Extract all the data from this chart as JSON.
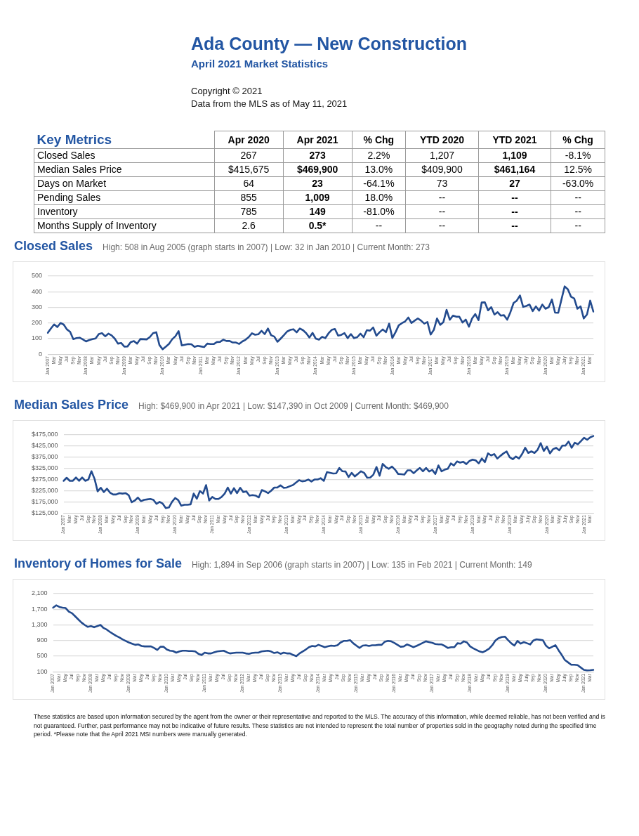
{
  "chart_data": [
    {
      "type": "other",
      "title": "Ada County — New Construction",
      "subtitle": "April 2021 Market Statistics",
      "ylabel": "Key Metrics",
      "annotations": [
        "Copyright © 2021",
        "Data from the MLS as of May 11, 2021"
      ],
      "categories": [
        "Closed Sales",
        "Median Sales Price",
        "Days on Market",
        "Pending Sales",
        "Inventory",
        "Months Supply of Inventory"
      ],
      "series": [
        {
          "name": "Apr 2020",
          "values": [
            267,
            415675,
            64,
            855,
            785,
            2.6
          ],
          "value_labels": [
            "267",
            "$415,675",
            "64",
            "855",
            "785",
            "2.6"
          ]
        },
        {
          "name": "Apr 2021",
          "values": [
            273,
            469900,
            23,
            1009,
            149,
            0.5
          ],
          "value_labels": [
            "273",
            "$469,900",
            "23",
            "1,009",
            "149",
            "0.5*"
          ]
        },
        {
          "name": "% Chg",
          "values": [
            2.2,
            13.0,
            -64.1,
            18.0,
            -81.0,
            null
          ],
          "value_labels": [
            "2.2%",
            "13.0%",
            "-64.1%",
            "18.0%",
            "-81.0%",
            "--"
          ]
        },
        {
          "name": "YTD 2020",
          "values": [
            1207,
            409900,
            73,
            null,
            null,
            null
          ],
          "value_labels": [
            "1,207",
            "$409,900",
            "73",
            "--",
            "--",
            "--"
          ]
        },
        {
          "name": "YTD 2021",
          "values": [
            1109,
            461164,
            27,
            null,
            null,
            null
          ],
          "value_labels": [
            "1,109",
            "$461,164",
            "27",
            "--",
            "--",
            "--"
          ]
        },
        {
          "name": "% Chg",
          "values": [
            -8.1,
            12.5,
            -63.0,
            null,
            null,
            null
          ],
          "value_labels": [
            "-8.1%",
            "12.5%",
            "-63.0%",
            "--",
            "--",
            "--"
          ]
        }
      ]
    },
    {
      "type": "line",
      "title": "Closed Sales",
      "subtitle": "High: 508 in Aug 2005 (graph starts in 2007)  |  Low: 32 in Jan 2010  |  Current Month: 273",
      "color": "#234b8e",
      "grid": "y",
      "ylim": [
        0,
        500
      ],
      "yticks": [
        0,
        100,
        200,
        300,
        400,
        500
      ],
      "categories": [
        "Jan 2007",
        null,
        "Mar",
        null,
        "May",
        null,
        "Jul",
        null,
        "Sep",
        null,
        "Nov",
        null,
        "Jan 2008",
        null,
        "Mar",
        null,
        "May",
        null,
        "Jul",
        null,
        "Sep",
        null,
        "Nov",
        null,
        "Jan 2009",
        null,
        "Mar",
        null,
        "May",
        null,
        "Jul",
        null,
        "Sep",
        null,
        "Nov",
        null,
        "Jan 2010",
        null,
        "Mar",
        null,
        "May",
        null,
        "Jul",
        null,
        "Sep",
        null,
        "Nov",
        null,
        "Jan 2011",
        null,
        "Mar",
        null,
        "May",
        null,
        "Jul",
        null,
        "Sep",
        null,
        "Nov",
        null,
        "Jan 2012",
        null,
        "Mar",
        null,
        "May",
        null,
        "Jul",
        null,
        "Sep",
        null,
        "Nov",
        null,
        "Jan 2013",
        null,
        "Mar",
        null,
        "May",
        null,
        "Jul",
        null,
        "Sep",
        null,
        "Nov",
        null,
        "Jan 2014",
        null,
        "Mar",
        null,
        "May",
        null,
        "Jul",
        null,
        "Sep",
        null,
        "Nov",
        null,
        "Jan 2015",
        null,
        "Mar",
        null,
        "May",
        null,
        "Jul",
        null,
        "Sep",
        null,
        "Nov",
        null,
        "Jan 2016",
        null,
        "Mar",
        null,
        "May",
        null,
        "Jul",
        null,
        "Sep",
        null,
        "Nov",
        null,
        "Jan 2017",
        null,
        "Mar",
        null,
        "May",
        null,
        "Jul",
        null,
        "Sep",
        null,
        "Nov",
        null,
        "Jan 2018",
        null,
        "Mar",
        null,
        "May",
        null,
        "Jul",
        null,
        "Sep",
        null,
        "Nov",
        null,
        "Jan 2019",
        null,
        "Mar",
        null,
        "May",
        null,
        "July",
        null,
        "Sep",
        null,
        "Nov",
        null,
        "Jan 2020",
        null,
        "Mar",
        null,
        "May",
        null,
        "July",
        null,
        "Sep",
        null,
        "Nov",
        null,
        "Jan 2021",
        null,
        "Mar",
        null
      ],
      "values": [
        137,
        165,
        191,
        174,
        200,
        190,
        159,
        144,
        97,
        103,
        106,
        95,
        82,
        91,
        97,
        101,
        129,
        135,
        115,
        132,
        121,
        100,
        68,
        72,
        49,
        50,
        78,
        84,
        68,
        97,
        96,
        95,
        110,
        135,
        141,
        59,
        32,
        48,
        66,
        96,
        115,
        148,
        56,
        61,
        65,
        64,
        47,
        54,
        50,
        46,
        68,
        65,
        65,
        78,
        79,
        93,
        85,
        85,
        75,
        75,
        66,
        82,
        93,
        110,
        134,
        125,
        128,
        150,
        129,
        165,
        122,
        113,
        80,
        100,
        122,
        145,
        156,
        160,
        140,
        165,
        154,
        135,
        107,
        137,
        100,
        93,
        112,
        103,
        134,
        156,
        162,
        119,
        124,
        135,
        103,
        129,
        103,
        109,
        132,
        109,
        154,
        151,
        171,
        119,
        141,
        159,
        141,
        196,
        104,
        141,
        185,
        199,
        210,
        235,
        200,
        215,
        229,
        215,
        196,
        206,
        126,
        156,
        229,
        188,
        206,
        284,
        221,
        247,
        240,
        240,
        203,
        222,
        176,
        229,
        257,
        218,
        331,
        332,
        281,
        301,
        254,
        269,
        247,
        250,
        221,
        269,
        328,
        343,
        376,
        303,
        309,
        318,
        276,
        306,
        279,
        318,
        291,
        301,
        350,
        266,
        265,
        350,
        434,
        416,
        368,
        357,
        291,
        306,
        229,
        254,
        343,
        273
      ]
    },
    {
      "type": "line",
      "title": "Median Sales Price",
      "subtitle": "High: $469,900 in Apr 2021  |  Low: $147,390 in Oct 2009  |  Current Month: $469,900",
      "color": "#234b8e",
      "grid": "y",
      "ylim": [
        125000,
        475000
      ],
      "yticks": [
        {
          "value": 125000,
          "label": "$125,000"
        },
        {
          "value": 175000,
          "label": "$175,000"
        },
        {
          "value": 225000,
          "label": "$225,000"
        },
        {
          "value": 275000,
          "label": "$275,000"
        },
        {
          "value": 325000,
          "label": "$325,000"
        },
        {
          "value": 375000,
          "label": "$375,000"
        },
        {
          "value": 425000,
          "label": "$425,000"
        },
        {
          "value": 475000,
          "label": "$475,000"
        }
      ],
      "categories": [
        "Jan 2007",
        null,
        "Mar",
        null,
        "May",
        null,
        "Jul",
        null,
        "Sep",
        null,
        "Nov",
        null,
        "Jan 2008",
        null,
        "Mar",
        null,
        "May",
        null,
        "Jul",
        null,
        "Sep",
        null,
        "Nov",
        null,
        "Jan 2009",
        null,
        "Mar",
        null,
        "May",
        null,
        "Jul",
        null,
        "Sep",
        null,
        "Nov",
        null,
        "Jan 2010",
        null,
        "Mar",
        null,
        "May",
        null,
        "Jul",
        null,
        "Sep",
        null,
        "Nov",
        null,
        "Jan 2011",
        null,
        "Mar",
        null,
        "May",
        null,
        "Jul",
        null,
        "Sep",
        null,
        "Nov",
        null,
        "Jan 2012",
        null,
        "Mar",
        null,
        "May",
        null,
        "Jul",
        null,
        "Sep",
        null,
        "Nov",
        null,
        "Jan 2013",
        null,
        "Mar",
        null,
        "May",
        null,
        "Jul",
        null,
        "Sep",
        null,
        "Nov",
        null,
        "Jan 2014",
        null,
        "Mar",
        null,
        "May",
        null,
        "Jul",
        null,
        "Sep",
        null,
        "Nov",
        null,
        "Jan 2015",
        null,
        "Mar",
        null,
        "May",
        null,
        "Jul",
        null,
        "Sep",
        null,
        "Nov",
        null,
        "Jan 2016",
        null,
        "Mar",
        null,
        "May",
        null,
        "Jul",
        null,
        "Sep",
        null,
        "Nov",
        null,
        "Jan 2017",
        null,
        "Mar",
        null,
        "May",
        null,
        "Jul",
        null,
        "Sep",
        null,
        "Nov",
        null,
        "Jan 2018",
        null,
        "Mar",
        null,
        "May",
        null,
        "Jul",
        null,
        "Sep",
        null,
        "Nov",
        null,
        "Jan 2019",
        null,
        "Mar",
        null,
        "May",
        null,
        "July",
        null,
        "Sep",
        null,
        "Nov",
        null,
        "Jan 2020",
        null,
        "Mar",
        null,
        "May",
        null,
        "July",
        null,
        "Sep",
        null,
        "Nov",
        null,
        "Jan 2021",
        null,
        "Mar",
        null
      ],
      "values": [
        269000,
        283000,
        269000,
        269000,
        284000,
        269000,
        284000,
        269000,
        275000,
        312000,
        278000,
        222000,
        238000,
        219000,
        234000,
        216000,
        208000,
        208000,
        214000,
        212000,
        214000,
        205000,
        173000,
        181000,
        194000,
        178000,
        184000,
        186000,
        188000,
        184000,
        166000,
        175000,
        167000,
        147000,
        150000,
        175000,
        192000,
        183000,
        158000,
        162000,
        162000,
        164000,
        212000,
        189000,
        223000,
        212000,
        250000,
        181000,
        197000,
        188000,
        188000,
        197000,
        212000,
        239000,
        212000,
        236000,
        214000,
        238000,
        219000,
        222000,
        203000,
        205000,
        203000,
        195000,
        228000,
        222000,
        214000,
        225000,
        239000,
        239000,
        249000,
        238000,
        239000,
        245000,
        250000,
        261000,
        272000,
        267000,
        269000,
        275000,
        266000,
        275000,
        275000,
        281000,
        269000,
        308000,
        305000,
        302000,
        303000,
        327000,
        312000,
        311000,
        286000,
        305000,
        289000,
        300000,
        312000,
        305000,
        283000,
        284000,
        297000,
        331000,
        292000,
        345000,
        331000,
        323000,
        333000,
        319000,
        300000,
        299000,
        297000,
        316000,
        316000,
        303000,
        316000,
        327000,
        312000,
        327000,
        311000,
        318000,
        300000,
        338000,
        312000,
        319000,
        323000,
        347000,
        338000,
        356000,
        351000,
        355000,
        344000,
        358000,
        364000,
        361000,
        347000,
        369000,
        353000,
        392000,
        383000,
        389000,
        369000,
        381000,
        392000,
        401000,
        375000,
        366000,
        378000,
        369000,
        389000,
        417000,
        394000,
        401000,
        394000,
        408000,
        438000,
        403000,
        422000,
        392000,
        411000,
        417000,
        406000,
        427000,
        427000,
        445000,
        417000,
        440000,
        433000,
        447000,
        462000,
        453000,
        464000,
        469900
      ]
    },
    {
      "type": "line",
      "title": "Inventory of Homes for Sale",
      "subtitle": "High: 1,894 in Sep 2006 (graph starts in 2007)  |  Low: 135 in Feb 2021 | Current Month: 149",
      "color": "#234b8e",
      "grid": "y",
      "ylim": [
        100,
        2100
      ],
      "yticks": [
        100,
        500,
        900,
        {
          "value": 1300,
          "label": "1,300"
        },
        {
          "value": 1700,
          "label": "1,700"
        },
        {
          "value": 2100,
          "label": "2,100"
        }
      ],
      "categories": [
        "Jan 2007",
        null,
        "Mar",
        null,
        "May",
        null,
        "Jul",
        null,
        "Sep",
        null,
        "Nov",
        null,
        "Jan 2008",
        null,
        "Mar",
        null,
        "May",
        null,
        "Jul",
        null,
        "Sep",
        null,
        "Nov",
        null,
        "Jan 2009",
        null,
        "Mar",
        null,
        "May",
        null,
        "Jul",
        null,
        "Sep",
        null,
        "Nov",
        null,
        "Jan 2010",
        null,
        "Mar",
        null,
        "May",
        null,
        "Jul",
        null,
        "Sep",
        null,
        "Nov",
        null,
        "Jan 2011",
        null,
        "Mar",
        null,
        "May",
        null,
        "Jul",
        null,
        "Sep",
        null,
        "Nov",
        null,
        "Jan 2012",
        null,
        "Mar",
        null,
        "May",
        null,
        "Jul",
        null,
        "Sep",
        null,
        "Nov",
        null,
        "Jan 2013",
        null,
        "Mar",
        null,
        "May",
        null,
        "Jul",
        null,
        "Sep",
        null,
        "Nov",
        null,
        "Jan 2014",
        null,
        "Mar",
        null,
        "May",
        null,
        "Jul",
        null,
        "Sep",
        null,
        "Nov",
        null,
        "Jan 2015",
        null,
        "Mar",
        null,
        "May",
        null,
        "Jul",
        null,
        "Sep",
        null,
        "Nov",
        null,
        "Jan 2016",
        null,
        "Mar",
        null,
        "May",
        null,
        "Jul",
        null,
        "Sep",
        null,
        "Nov",
        null,
        "Jan 2017",
        null,
        "Mar",
        null,
        "May",
        null,
        "Jul",
        null,
        "Sep",
        null,
        "Nov",
        null,
        "Jan 2018",
        null,
        "Mar",
        null,
        "May",
        null,
        "Jul",
        null,
        "Sep",
        null,
        "Nov",
        null,
        "Jan 2019",
        null,
        "Mar",
        null,
        "May",
        null,
        "July",
        null,
        "Sep",
        null,
        "Nov",
        null,
        "Jan 2020",
        null,
        "Mar",
        null,
        "May",
        null,
        "July",
        null,
        "Sep",
        null,
        "Nov",
        null,
        "Jan 2021",
        null,
        "Mar",
        null
      ],
      "values": [
        1740,
        1800,
        1760,
        1740,
        1730,
        1640,
        1600,
        1520,
        1440,
        1360,
        1300,
        1250,
        1270,
        1240,
        1270,
        1300,
        1220,
        1180,
        1120,
        1070,
        1020,
        980,
        930,
        890,
        850,
        820,
        790,
        800,
        760,
        750,
        750,
        750,
        710,
        660,
        740,
        740,
        670,
        640,
        630,
        590,
        620,
        640,
        640,
        630,
        630,
        620,
        560,
        530,
        590,
        570,
        570,
        600,
        620,
        630,
        640,
        600,
        570,
        580,
        590,
        590,
        590,
        570,
        560,
        580,
        590,
        590,
        620,
        630,
        640,
        620,
        580,
        600,
        560,
        590,
        570,
        570,
        530,
        500,
        570,
        620,
        670,
        730,
        760,
        750,
        790,
        760,
        730,
        750,
        770,
        760,
        780,
        850,
        890,
        890,
        910,
        830,
        770,
        710,
        770,
        780,
        760,
        780,
        780,
        790,
        790,
        870,
        890,
        880,
        840,
        790,
        740,
        750,
        800,
        770,
        730,
        760,
        800,
        840,
        880,
        860,
        840,
        810,
        800,
        800,
        760,
        710,
        730,
        730,
        830,
        820,
        880,
        850,
        750,
        700,
        660,
        620,
        600,
        640,
        690,
        780,
        900,
        960,
        990,
        1000,
        910,
        830,
        770,
        890,
        820,
        860,
        830,
        800,
        900,
        930,
        920,
        910,
        770,
        700,
        740,
        780,
        650,
        530,
        400,
        340,
        280,
        280,
        270,
        210,
        150,
        135,
        140,
        149
      ],
      "annotations": [
        "These statistics are based upon information secured by the agent from the owner or their representative and reported to the MLS. The accuracy of this information, while deemed reliable, has not been verified and is not guaranteed. Further, past performance may not be indicative of future results. These statistics are not intended to represent the total number of properties sold in the geography noted during the specified time period. *Please note that the April 2021 MSI numbers were manually generated."
      ]
    }
  ]
}
